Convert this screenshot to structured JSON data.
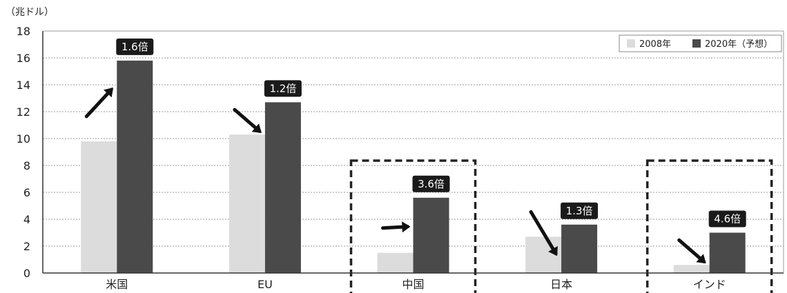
{
  "chart_data": {
    "type": "bar",
    "unit_label": "（兆ドル）",
    "categories": [
      "米国",
      "EU",
      "中国",
      "日本",
      "インド"
    ],
    "series": [
      {
        "name": "2008年",
        "color": "#dcdcdc",
        "values": [
          9.8,
          10.3,
          1.5,
          2.7,
          0.6
        ]
      },
      {
        "name": "2020年（予想）",
        "color": "#4a4a4a",
        "values": [
          15.8,
          12.7,
          5.6,
          3.6,
          3.0
        ]
      }
    ],
    "growth_labels": [
      "1.6倍",
      "1.2倍",
      "3.6倍",
      "1.3倍",
      "4.6倍"
    ],
    "highlighted_categories": [
      "中国",
      "インド"
    ],
    "ylim": [
      0,
      18
    ],
    "yticks": [
      0,
      2,
      4,
      6,
      8,
      10,
      12,
      14,
      16,
      18
    ],
    "grid": "horizontal-dotted",
    "legend_position": "top-right"
  }
}
